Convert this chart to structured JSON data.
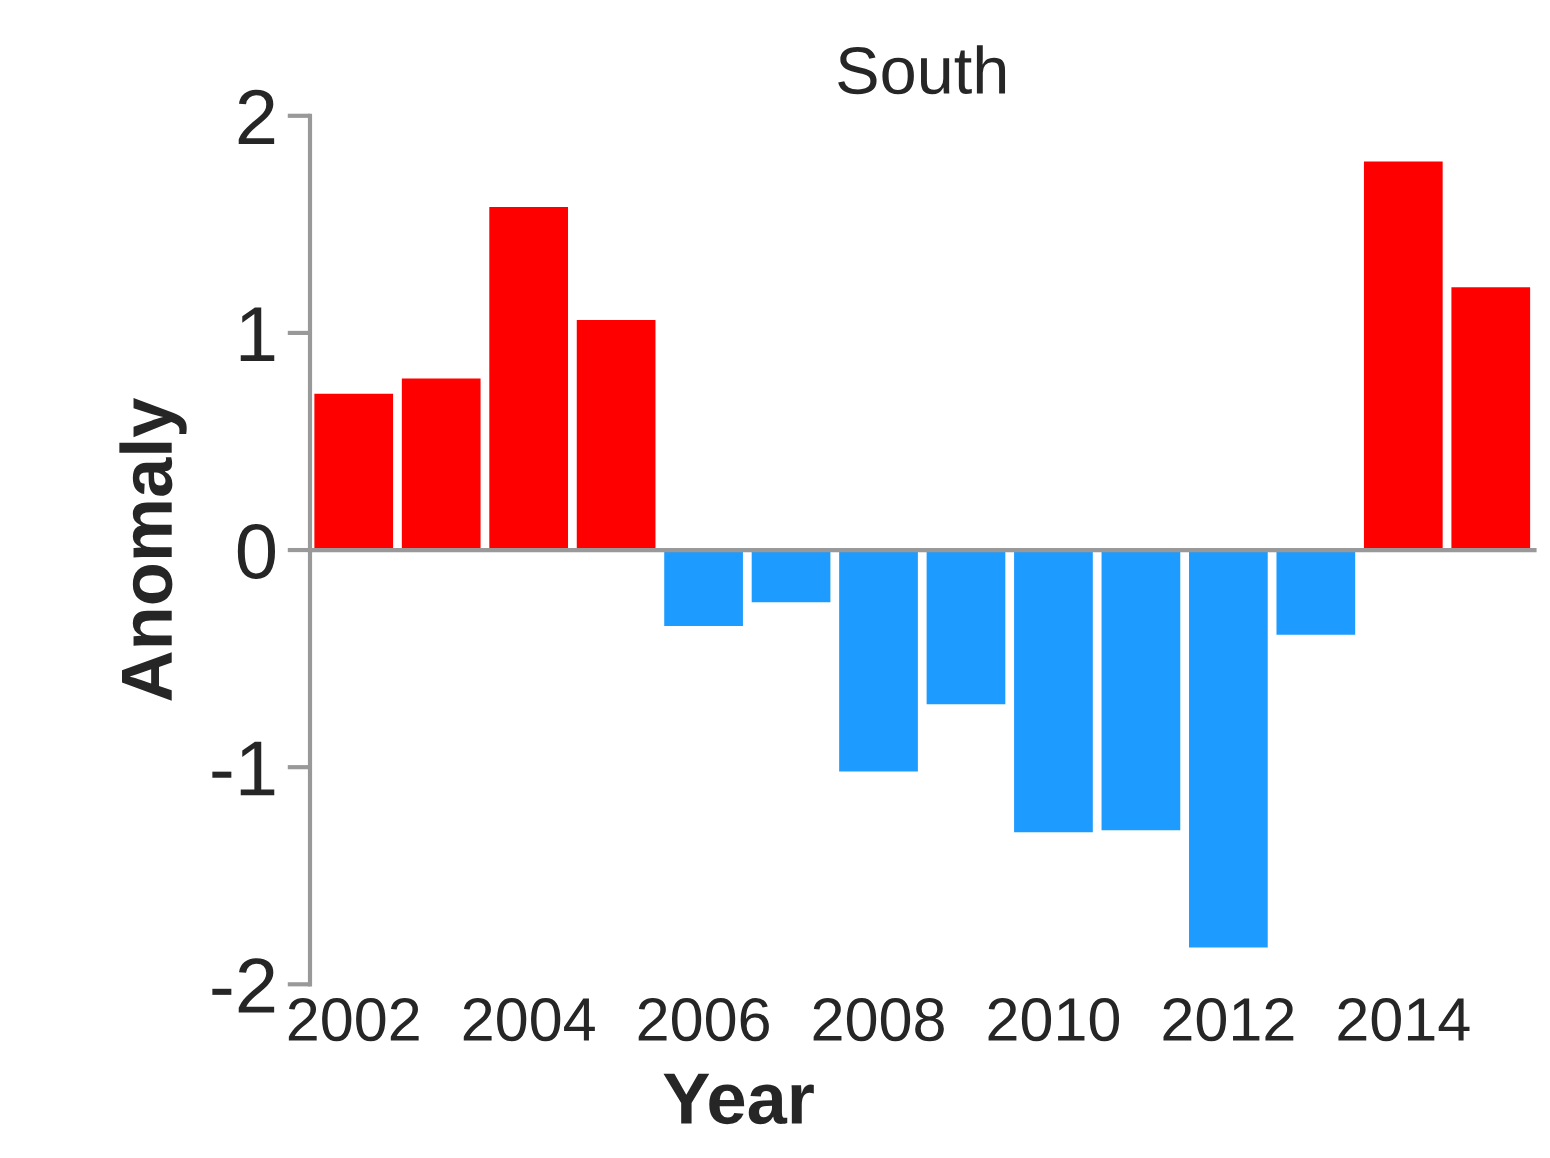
{
  "chart_data": {
    "type": "bar",
    "title": "South",
    "xlabel": "Year",
    "ylabel": "Anomaly",
    "categories": [
      "2002",
      null,
      "2004",
      null,
      "2006",
      null,
      "2008",
      null,
      "2010",
      null,
      "2012",
      null,
      "2014",
      null
    ],
    "values": [
      0.72,
      0.79,
      1.58,
      1.06,
      -0.35,
      -0.24,
      -1.02,
      -0.71,
      -1.3,
      -1.29,
      -1.83,
      -0.39,
      1.79,
      1.21
    ],
    "colors": [
      "#ff0000",
      "#ff0000",
      "#ff0000",
      "#ff0000",
      "#1e9bff",
      "#1e9bff",
      "#1e9bff",
      "#1e9bff",
      "#1e9bff",
      "#1e9bff",
      "#1e9bff",
      "#1e9bff",
      "#ff0000",
      "#ff0000"
    ],
    "ylim": [
      -2,
      2
    ],
    "yticks": [
      {
        "value": -2,
        "label": "-2"
      },
      {
        "value": -1,
        "label": "-1"
      },
      0,
      1,
      2
    ]
  }
}
